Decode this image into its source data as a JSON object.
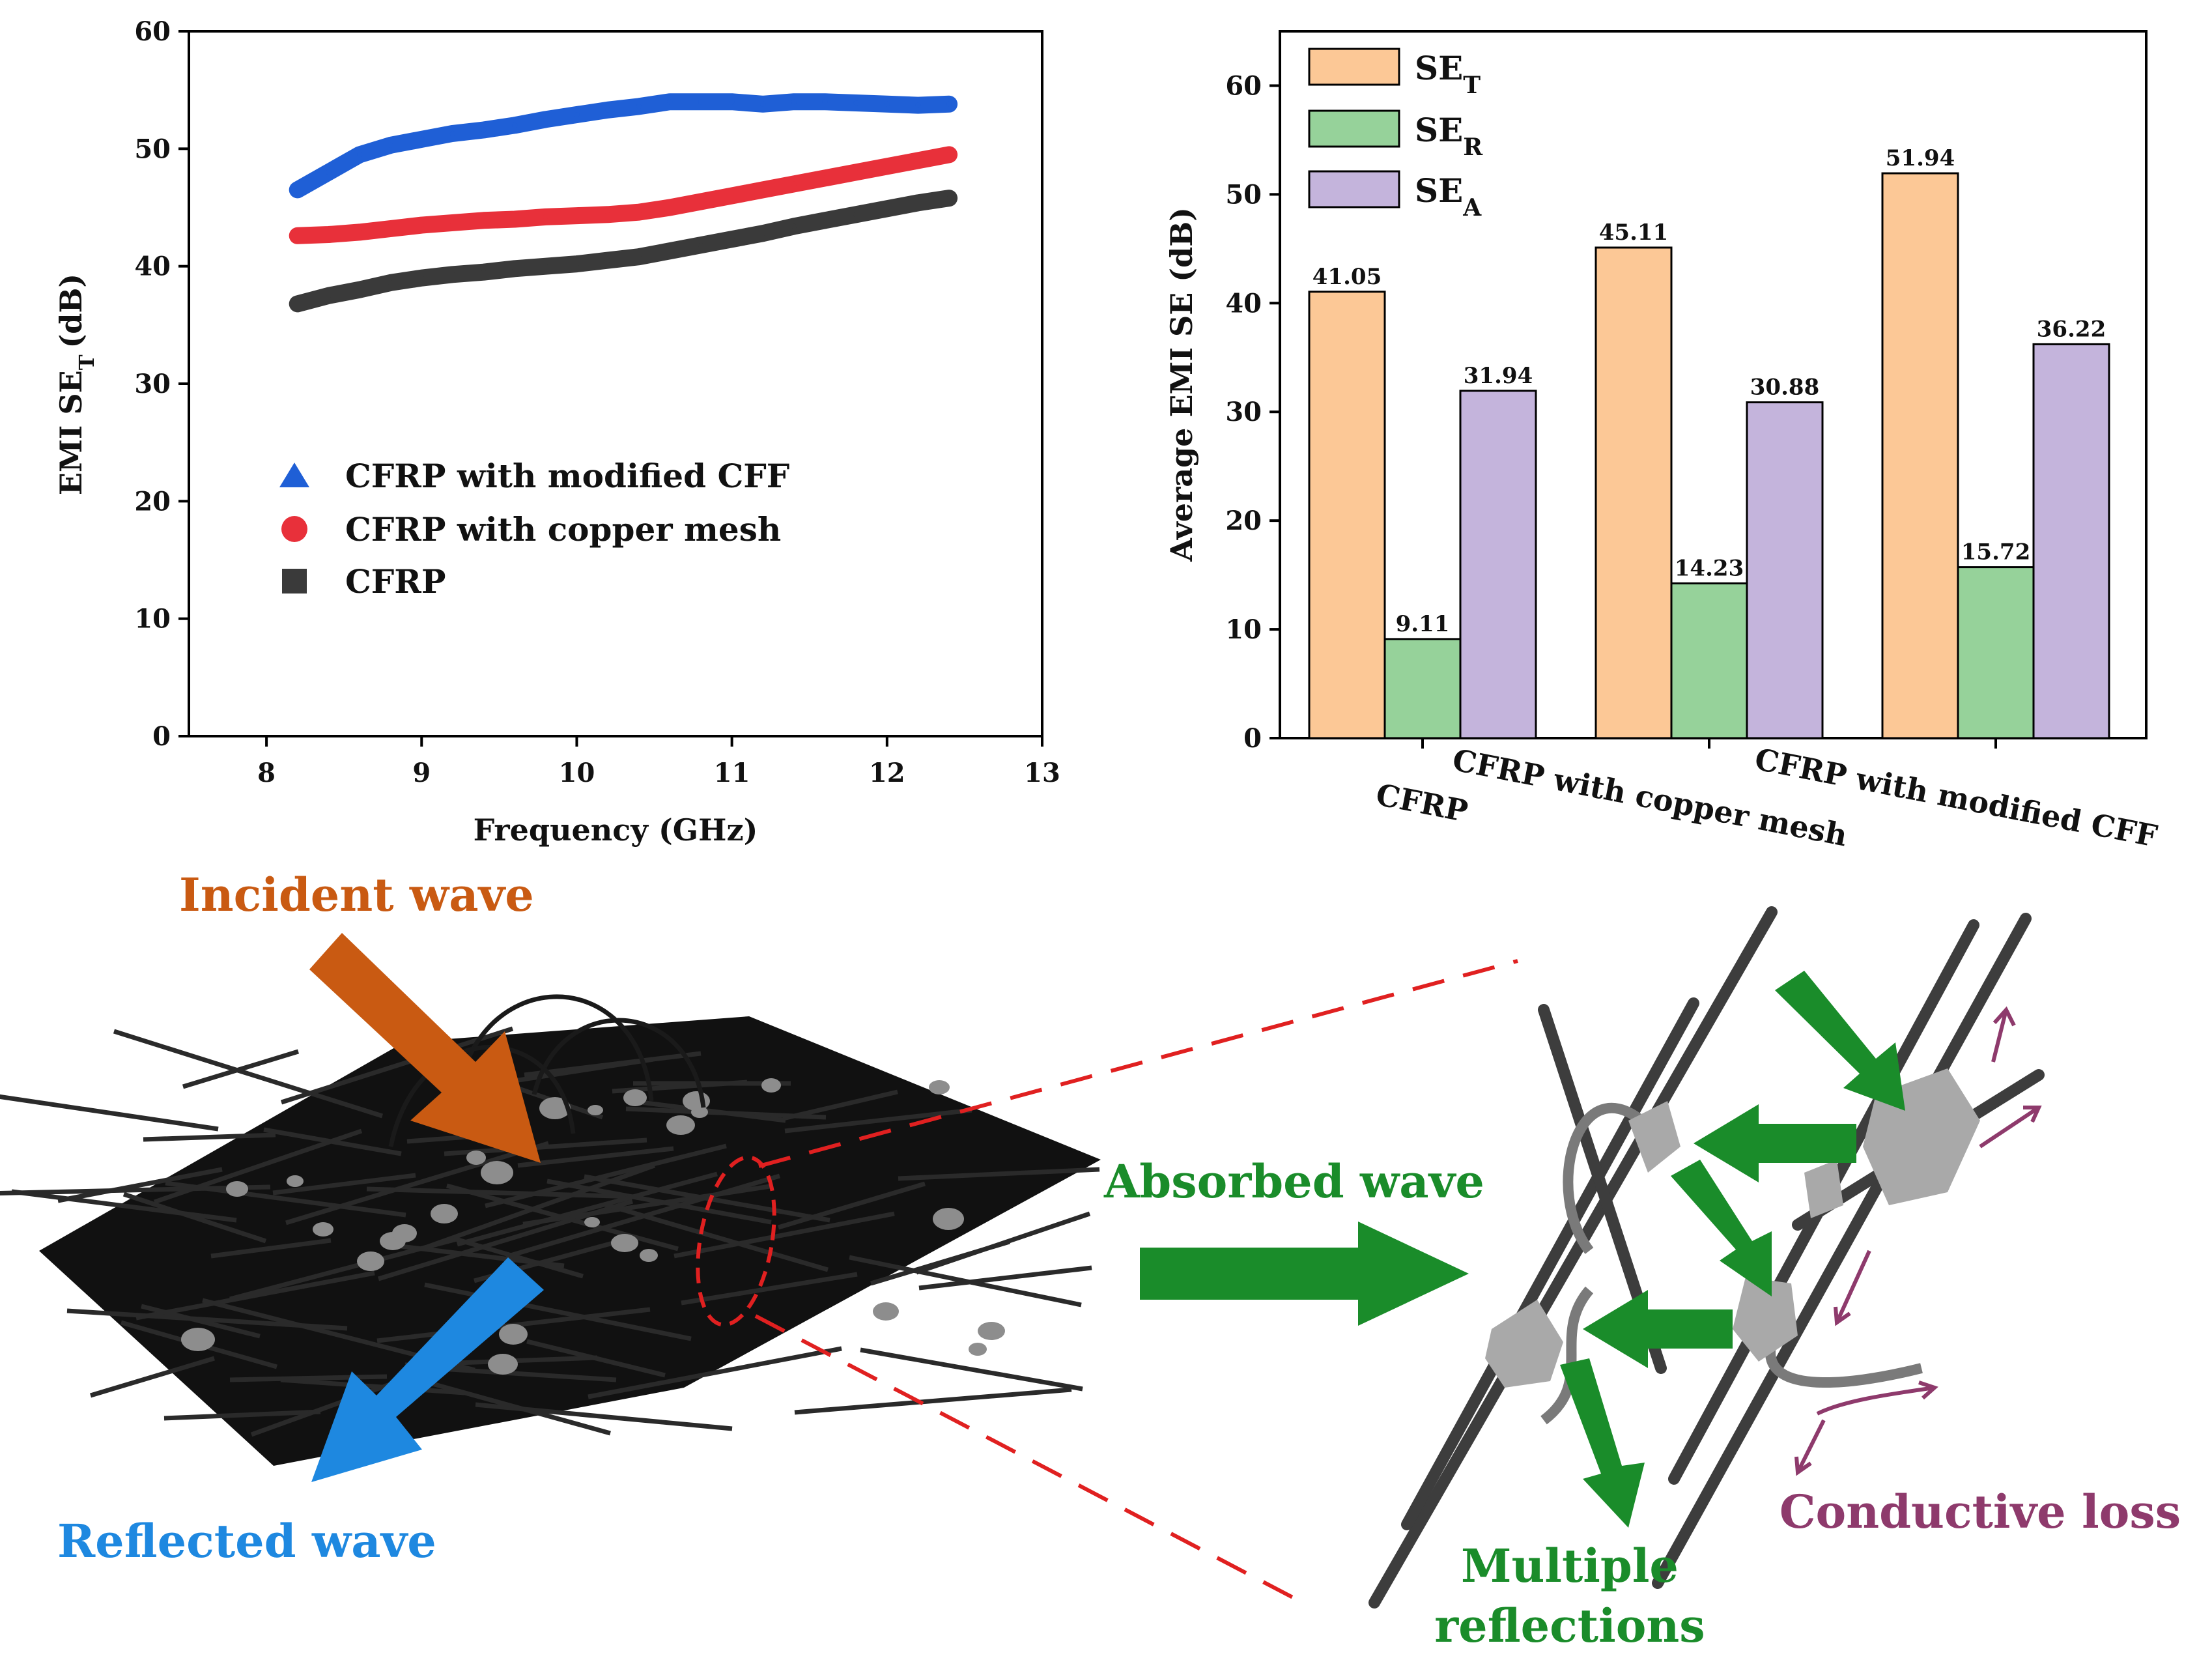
{
  "chart_data": [
    {
      "type": "line",
      "xlabel": "Frequency (GHz)",
      "ylabel": "EMI SE",
      "ylabel_sub": "T",
      "ylabel_unit": "(dB)",
      "xlim": [
        7.5,
        13
      ],
      "ylim": [
        0,
        60
      ],
      "xticks": [
        8,
        9,
        10,
        11,
        12,
        13
      ],
      "yticks": [
        0,
        10,
        20,
        30,
        40,
        50,
        60
      ],
      "legend_position": "center-left",
      "series": [
        {
          "name": "CFRP with modified CFF",
          "color": "#1f5fd6",
          "marker": "triangle",
          "x": [
            8.2,
            8.4,
            8.6,
            8.8,
            9.0,
            9.2,
            9.4,
            9.6,
            9.8,
            10.0,
            10.2,
            10.4,
            10.6,
            10.8,
            11.0,
            11.2,
            11.4,
            11.6,
            11.8,
            12.0,
            12.2,
            12.4
          ],
          "y": [
            46.5,
            48.0,
            49.5,
            50.3,
            50.8,
            51.3,
            51.6,
            52.0,
            52.5,
            52.9,
            53.3,
            53.6,
            54.0,
            54.0,
            54.0,
            53.8,
            54.0,
            54.0,
            53.9,
            53.8,
            53.7,
            53.8
          ]
        },
        {
          "name": "CFRP with copper mesh",
          "color": "#e8303a",
          "marker": "circle",
          "x": [
            8.2,
            8.4,
            8.6,
            8.8,
            9.0,
            9.2,
            9.4,
            9.6,
            9.8,
            10.0,
            10.2,
            10.4,
            10.6,
            10.8,
            11.0,
            11.2,
            11.4,
            11.6,
            11.8,
            12.0,
            12.2,
            12.4
          ],
          "y": [
            42.6,
            42.7,
            42.9,
            43.2,
            43.5,
            43.7,
            43.9,
            44.0,
            44.2,
            44.3,
            44.4,
            44.6,
            45.0,
            45.5,
            46.0,
            46.5,
            47.0,
            47.5,
            48.0,
            48.5,
            49.0,
            49.5
          ]
        },
        {
          "name": "CFRP",
          "color": "#3a3a3a",
          "marker": "square",
          "x": [
            8.2,
            8.4,
            8.6,
            8.8,
            9.0,
            9.2,
            9.4,
            9.6,
            9.8,
            10.0,
            10.2,
            10.4,
            10.6,
            10.8,
            11.0,
            11.2,
            11.4,
            11.6,
            11.8,
            12.0,
            12.2,
            12.4
          ],
          "y": [
            36.8,
            37.5,
            38.0,
            38.6,
            39.0,
            39.3,
            39.5,
            39.8,
            40.0,
            40.2,
            40.5,
            40.8,
            41.3,
            41.8,
            42.3,
            42.8,
            43.4,
            43.9,
            44.4,
            44.9,
            45.4,
            45.8
          ]
        }
      ]
    },
    {
      "type": "bar",
      "ylabel": "Average EMI SE (dB)",
      "ylim": [
        0,
        65
      ],
      "yticks": [
        0,
        10,
        20,
        30,
        40,
        50,
        60
      ],
      "categories": [
        "CFRP",
        "CFRP with copper mesh",
        "CFRP with modified CFF"
      ],
      "legend_position": "top-left",
      "series": [
        {
          "name": "SE",
          "sub": "T",
          "color": "#fcc896",
          "values": [
            41.05,
            45.11,
            51.94
          ],
          "labels": [
            "41.05",
            "45.11",
            "51.94"
          ]
        },
        {
          "name": "SE",
          "sub": "R",
          "color": "#96d29a",
          "values": [
            9.11,
            14.23,
            15.72
          ],
          "labels": [
            "9.11",
            "14.23",
            "15.72"
          ]
        },
        {
          "name": "SE",
          "sub": "A",
          "color": "#c4b4dc",
          "values": [
            31.94,
            30.88,
            36.22
          ],
          "labels": [
            "31.94",
            "30.88",
            "36.22"
          ]
        }
      ]
    }
  ],
  "schematic": {
    "incident_label": "Incident wave",
    "reflected_label": "Reflected wave",
    "absorbed_label": "Absorbed wave",
    "multiple_line1": "Multiple",
    "multiple_line2": "reflections",
    "conductive_label": "Conductive loss",
    "colors": {
      "incident": "#c95a12",
      "reflected": "#1e88e0",
      "absorbed": "#1a8c2a",
      "conductive": "#8e3a6c",
      "zoom": "#e02020"
    }
  }
}
